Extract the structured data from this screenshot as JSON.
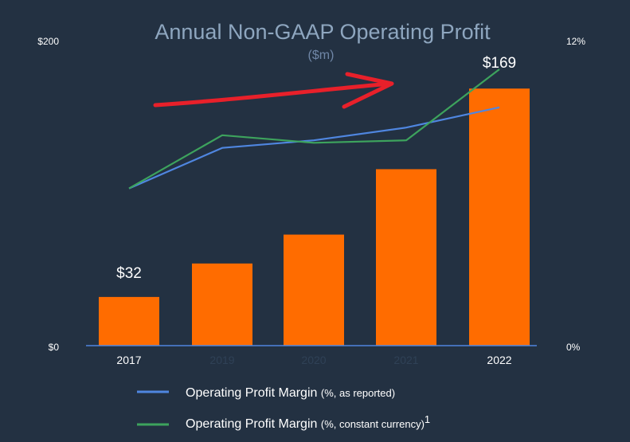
{
  "chart_data": {
    "type": "bar",
    "title": "Annual Non-GAAP Operating Profit",
    "subtitle": "($m)",
    "categories": [
      "2017",
      "2019",
      "2020",
      "2021",
      "2022"
    ],
    "category_faded": [
      false,
      true,
      true,
      true,
      false
    ],
    "values": [
      32,
      54,
      73,
      116,
      169
    ],
    "data_labels": [
      {
        "index": 0,
        "text": "$32"
      },
      {
        "index": 4,
        "text": "$169"
      }
    ],
    "bar_color": "#ff6c00",
    "y_left": {
      "min": 0,
      "max": 200,
      "tick_labels": [
        "$0",
        "$200"
      ]
    },
    "y_right": {
      "min": 0,
      "max": 12,
      "tick_labels": [
        "0%",
        "12%"
      ]
    },
    "series": [
      {
        "name": "Operating Profit Margin",
        "suffix": "(%, as reported)",
        "superscript": "",
        "axis": "right",
        "color": "#4f86e0",
        "values": [
          6.2,
          7.8,
          8.1,
          8.6,
          9.4
        ]
      },
      {
        "name": "Operating Profit Margin",
        "suffix": "(%, constant currency)",
        "superscript": "1",
        "axis": "right",
        "color": "#3da35d",
        "values": [
          6.2,
          8.3,
          8.0,
          8.1,
          10.9
        ]
      }
    ],
    "annotation": {
      "type": "arrow",
      "color": "#e8202a",
      "direction": "up-right"
    },
    "legend_position": "bottom",
    "grid": false
  }
}
